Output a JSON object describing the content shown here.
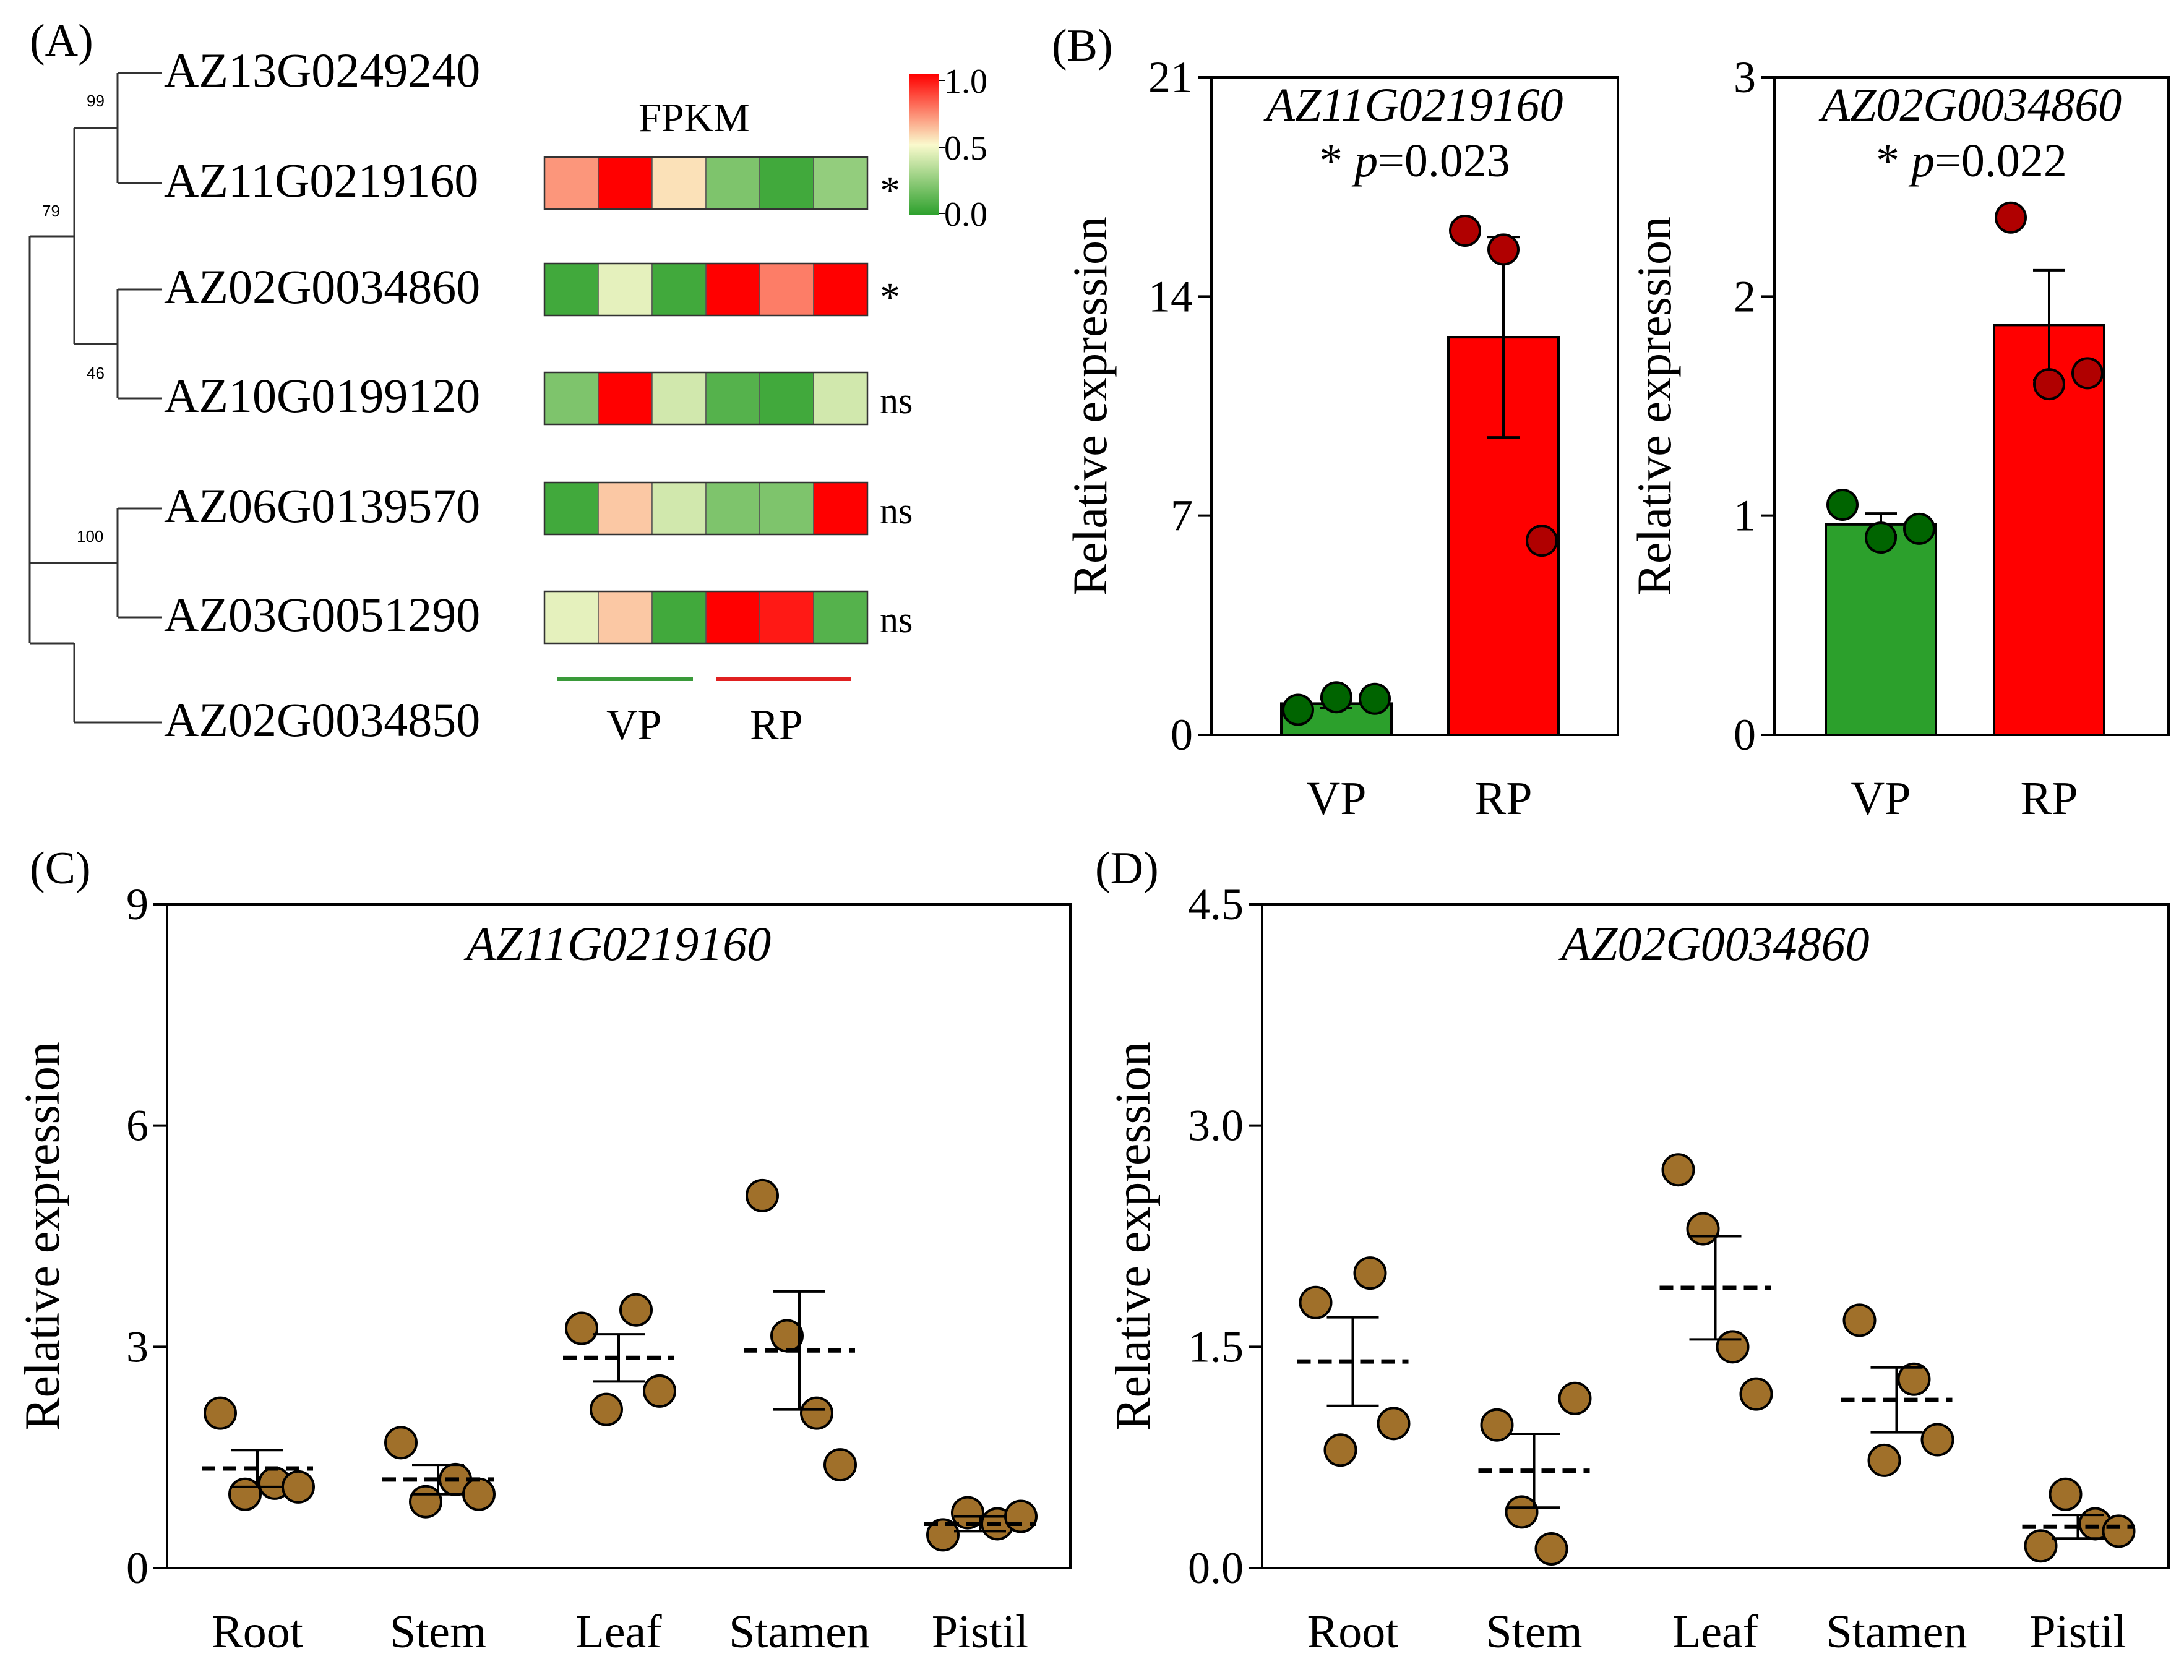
{
  "colors": {
    "green_bar": "#2ca02c",
    "red_bar": "#ff0000",
    "dark_green_dot": "#006400",
    "dark_red_dot": "#b00000",
    "brown_dot": "#a0702a",
    "vp_line": "#3a9a3a",
    "rp_line": "#e02020"
  },
  "chart_data": [
    {
      "panel": "(A)",
      "type": "heatmap",
      "title": "FPKM",
      "tree": {
        "bootstrap": [
          "99",
          "79",
          "46",
          "100"
        ]
      },
      "genes": [
        "AZ13G0249240",
        "AZ11G0219160",
        "AZ02G0034860",
        "AZ10G0199120",
        "AZ06G0139570",
        "AZ03G0051290",
        "AZ02G0034850"
      ],
      "rows": [
        {
          "gene": "AZ11G0219160",
          "values": [
            0.7,
            1.0,
            0.55,
            0.2,
            0.05,
            0.25
          ],
          "sig": "*"
        },
        {
          "gene": "AZ02G0034860",
          "values": [
            0.05,
            0.45,
            0.05,
            1.0,
            0.75,
            1.0
          ],
          "sig": "*"
        },
        {
          "gene": "AZ10G0199120",
          "values": [
            0.2,
            1.0,
            0.4,
            0.1,
            0.05,
            0.4
          ],
          "sig": "ns"
        },
        {
          "gene": "AZ06G0139570",
          "values": [
            0.05,
            0.6,
            0.4,
            0.2,
            0.2,
            1.0
          ],
          "sig": "ns"
        },
        {
          "gene": "AZ03G0051290",
          "values": [
            0.45,
            0.6,
            0.05,
            1.0,
            0.95,
            0.1
          ],
          "sig": "ns"
        }
      ],
      "groups": [
        "VP",
        "RP"
      ],
      "colorbar": {
        "ticks": [
          "1.0",
          "0.5",
          "0.0"
        ],
        "min": 0.0,
        "max": 1.0
      }
    },
    {
      "panel": "(B)",
      "type": "bar",
      "title": "AZ11G0219160",
      "stat_label": "*",
      "p_prefix": "p",
      "p_value": "=0.023",
      "ylabel": "Relative expression",
      "ylim": [
        0,
        21
      ],
      "yticks": [
        "0",
        "7",
        "14",
        "21"
      ],
      "categories": [
        "VP",
        "RP"
      ],
      "means": [
        1.0,
        12.7
      ],
      "sem": [
        0.15,
        3.2
      ],
      "points": [
        [
          0.8,
          1.2,
          1.15
        ],
        [
          16.1,
          15.5,
          6.2
        ]
      ]
    },
    {
      "panel": "(B2)",
      "type": "bar",
      "title": "AZ02G0034860",
      "stat_label": "*",
      "p_prefix": "p",
      "p_value": "=0.022",
      "ylabel": "Relative expression",
      "ylim": [
        0,
        3
      ],
      "yticks": [
        "0",
        "1",
        "2",
        "3"
      ],
      "categories": [
        "VP",
        "RP"
      ],
      "means": [
        0.96,
        1.87
      ],
      "sem": [
        0.05,
        0.25
      ],
      "points": [
        [
          1.05,
          0.9,
          0.94
        ],
        [
          2.36,
          1.6,
          1.65
        ]
      ]
    },
    {
      "panel": "(C)",
      "type": "scatter",
      "title": "AZ11G0219160",
      "ylabel": "Relative expression",
      "ylim": [
        0,
        9
      ],
      "yticks": [
        "0",
        "3",
        "6",
        "9"
      ],
      "categories": [
        "Root",
        "Stem",
        "Leaf",
        "Stamen",
        "Pistil"
      ],
      "means": [
        1.35,
        1.2,
        2.85,
        2.95,
        0.6
      ],
      "sem": [
        0.25,
        0.2,
        0.32,
        0.8,
        0.1
      ],
      "points": [
        [
          2.1,
          1.0,
          1.15,
          1.1
        ],
        [
          1.7,
          0.9,
          1.2,
          1.0
        ],
        [
          3.25,
          2.15,
          3.5,
          2.4
        ],
        [
          5.05,
          3.15,
          2.1,
          1.4
        ],
        [
          0.45,
          0.75,
          0.6,
          0.7
        ]
      ]
    },
    {
      "panel": "(D)",
      "type": "scatter",
      "title": "AZ02G0034860",
      "ylabel": "Relative expression",
      "ylim": [
        0,
        4.5
      ],
      "yticks": [
        "0.0",
        "1.5",
        "3.0",
        "4.5"
      ],
      "categories": [
        "Root",
        "Stem",
        "Leaf",
        "Stamen",
        "Pistil"
      ],
      "means": [
        1.4,
        0.66,
        1.9,
        1.14,
        0.28
      ],
      "sem": [
        0.3,
        0.25,
        0.35,
        0.22,
        0.08
      ],
      "points": [
        [
          1.8,
          0.8,
          2.0,
          0.98
        ],
        [
          0.97,
          0.38,
          0.13,
          1.15
        ],
        [
          2.7,
          2.3,
          1.5,
          1.18
        ],
        [
          1.68,
          0.73,
          1.28,
          0.87
        ],
        [
          0.15,
          0.5,
          0.3,
          0.25
        ]
      ]
    }
  ]
}
